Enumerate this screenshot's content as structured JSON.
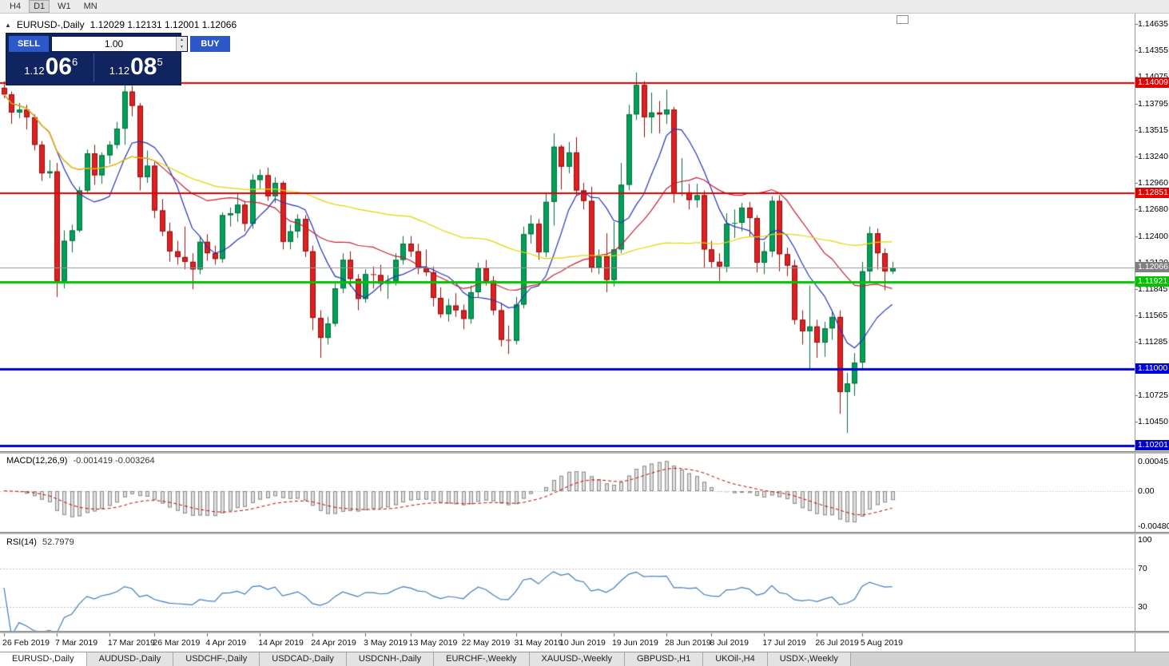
{
  "toolbar": {
    "timeframes": [
      {
        "label": "H4",
        "active": false
      },
      {
        "label": "D1",
        "active": true
      },
      {
        "label": "W1",
        "active": false
      },
      {
        "label": "MN",
        "active": false
      }
    ]
  },
  "chart": {
    "title": "EURUSD-,Daily",
    "ohlc_text": "1.12029 1.12131 1.12001 1.12066"
  },
  "trade_panel": {
    "sell_label": "SELL",
    "buy_label": "BUY",
    "volume": "1.00",
    "sell_price_main": "1.12",
    "sell_price_big": "06",
    "sell_price_sup": "6",
    "buy_price_main": "1.12",
    "buy_price_big": "08",
    "buy_price_sup": "5"
  },
  "indicators": {
    "macd": {
      "label": "MACD(12,26,9)",
      "values": "-0.001419 -0.003264",
      "axis": [
        "0.0004517",
        "0.00",
        "-0.0048060"
      ]
    },
    "rsi": {
      "label": "RSI(14)",
      "value": "52.7979",
      "axis": [
        {
          "text": "100",
          "value": 100
        },
        {
          "text": "70",
          "value": 70
        },
        {
          "text": "30",
          "value": 30
        }
      ]
    }
  },
  "price_axis": {
    "ticks": [
      {
        "text": "1.14635",
        "value": 1.14635
      },
      {
        "text": "1.14355",
        "value": 1.14355
      },
      {
        "text": "1.14075",
        "value": 1.14075
      },
      {
        "text": "1.13795",
        "value": 1.13795
      },
      {
        "text": "1.13515",
        "value": 1.13515
      },
      {
        "text": "1.13240",
        "value": 1.1324
      },
      {
        "text": "1.12960",
        "value": 1.1296
      },
      {
        "text": "1.12680",
        "value": 1.1268
      },
      {
        "text": "1.12400",
        "value": 1.124
      },
      {
        "text": "1.12120",
        "value": 1.1212
      },
      {
        "text": "1.11845",
        "value": 1.11845
      },
      {
        "text": "1.11565",
        "value": 1.11565
      },
      {
        "text": "1.11285",
        "value": 1.11285
      },
      {
        "text": "1.11005",
        "value": 1.11005
      },
      {
        "text": "1.10725",
        "value": 1.10725
      },
      {
        "text": "1.10450",
        "value": 1.1045
      }
    ],
    "marked": [
      {
        "text": "1.14009",
        "value": 1.14009,
        "bg": "#e00000",
        "fg": "#ffffff"
      },
      {
        "text": "1.12851",
        "value": 1.12851,
        "bg": "#e00000",
        "fg": "#ffffff"
      },
      {
        "text": "1.12066",
        "value": 1.12066,
        "bg": "#7f7f7f",
        "fg": "#ffffff"
      },
      {
        "text": "1.11921",
        "value": 1.11921,
        "bg": "#00c400",
        "fg": "#ffffff"
      },
      {
        "text": "1.11000",
        "value": 1.11,
        "bg": "#0000dd",
        "fg": "#ffffff"
      },
      {
        "text": "1.10201",
        "value": 1.10201,
        "bg": "#0000cc",
        "fg": "#ffffff"
      }
    ]
  },
  "time_axis": {
    "labels": [
      {
        "text": "26 Feb 2019",
        "bar": 0
      },
      {
        "text": "7 Mar 2019",
        "bar": 7
      },
      {
        "text": "17 Mar 2019",
        "bar": 14
      },
      {
        "text": "26 Mar 2019",
        "bar": 20
      },
      {
        "text": "4 Apr 2019",
        "bar": 27
      },
      {
        "text": "14 Apr 2019",
        "bar": 34
      },
      {
        "text": "24 Apr 2019",
        "bar": 41
      },
      {
        "text": "3 May 2019",
        "bar": 48
      },
      {
        "text": "13 May 2019",
        "bar": 54
      },
      {
        "text": "22 May 2019",
        "bar": 61
      },
      {
        "text": "31 May 2019",
        "bar": 68
      },
      {
        "text": "10 Jun 2019",
        "bar": 74
      },
      {
        "text": "19 Jun 2019",
        "bar": 81
      },
      {
        "text": "28 Jun 2019",
        "bar": 88
      },
      {
        "text": "8 Jul 2019",
        "bar": 94
      },
      {
        "text": "17 Jul 2019",
        "bar": 101
      },
      {
        "text": "26 Jul 2019",
        "bar": 108
      },
      {
        "text": "5 Aug 2019",
        "bar": 114
      }
    ]
  },
  "tabs": [
    {
      "label": "EURUSD-,Daily",
      "active": true
    },
    {
      "label": "AUDUSD-,Daily",
      "active": false
    },
    {
      "label": "USDCHF-,Daily",
      "active": false
    },
    {
      "label": "USDCAD-,Daily",
      "active": false
    },
    {
      "label": "USDCNH-,Daily",
      "active": false
    },
    {
      "label": "EURCHF-,Weekly",
      "active": false
    },
    {
      "label": "XAUUSD-,Weekly",
      "active": false
    },
    {
      "label": "GBPUSD-,H1",
      "active": false
    },
    {
      "label": "UKOil-,H4",
      "active": false
    },
    {
      "label": "USDX-,Weekly",
      "active": false
    }
  ],
  "chart_data": {
    "type": "candlestick",
    "symbol": "EURUSD-",
    "timeframe": "Daily",
    "current_price": 1.12066,
    "price_range": [
      1.1013,
      1.1474
    ],
    "hlines": [
      {
        "price": 1.14009,
        "color": "#e00000",
        "width": 2
      },
      {
        "price": 1.12851,
        "color": "#e00000",
        "width": 2
      },
      {
        "price": 1.11921,
        "color": "#00c400",
        "width": 3
      },
      {
        "price": 1.11,
        "color": "#0000dd",
        "width": 3
      },
      {
        "price": 1.10201,
        "color": "#0000cc",
        "width": 3
      }
    ],
    "overlays": [
      {
        "type": "sma",
        "period": 8,
        "color": "#2233bb"
      },
      {
        "type": "sma",
        "period": 21,
        "color": "#c22033"
      },
      {
        "type": "sma",
        "period": 55,
        "color": "#e6d400"
      }
    ],
    "macd": {
      "fast": 12,
      "slow": 26,
      "signal": 9,
      "histogram_color": "#dedede",
      "signal_color": "#cc0000",
      "range": [
        -0.0056,
        0.005
      ]
    },
    "rsi": {
      "period": 14,
      "color": "#3f7cbf",
      "levels": [
        70,
        30
      ],
      "range": [
        0,
        100
      ]
    },
    "candles": [
      [
        1.1396,
        1.1403,
        1.1385,
        1.1389
      ],
      [
        1.1389,
        1.1392,
        1.1358,
        1.137
      ],
      [
        1.137,
        1.138,
        1.1364,
        1.1373
      ],
      [
        1.1373,
        1.1378,
        1.1352,
        1.1365
      ],
      [
        1.1365,
        1.1368,
        1.133,
        1.1336
      ],
      [
        1.1336,
        1.134,
        1.1298,
        1.1306
      ],
      [
        1.1306,
        1.132,
        1.1301,
        1.1308
      ],
      [
        1.1308,
        1.1317,
        1.1176,
        1.1193
      ],
      [
        1.1193,
        1.1246,
        1.1185,
        1.1235
      ],
      [
        1.1235,
        1.1252,
        1.1223,
        1.1246
      ],
      [
        1.1246,
        1.1292,
        1.1244,
        1.1288
      ],
      [
        1.1288,
        1.1331,
        1.1285,
        1.1327
      ],
      [
        1.1327,
        1.1336,
        1.1294,
        1.1304
      ],
      [
        1.1304,
        1.1328,
        1.1295,
        1.1325
      ],
      [
        1.1325,
        1.134,
        1.1316,
        1.1336
      ],
      [
        1.1336,
        1.136,
        1.1332,
        1.1353
      ],
      [
        1.1353,
        1.1408,
        1.1336,
        1.1392
      ],
      [
        1.1392,
        1.1398,
        1.1366,
        1.1377
      ],
      [
        1.1377,
        1.138,
        1.1288,
        1.1302
      ],
      [
        1.1302,
        1.133,
        1.1296,
        1.1314
      ],
      [
        1.1314,
        1.1318,
        1.1259,
        1.1267
      ],
      [
        1.1267,
        1.1279,
        1.124,
        1.1245
      ],
      [
        1.1245,
        1.1254,
        1.1213,
        1.1224
      ],
      [
        1.1224,
        1.1235,
        1.121,
        1.1218
      ],
      [
        1.1218,
        1.125,
        1.1205,
        1.1213
      ],
      [
        1.1213,
        1.1222,
        1.1184,
        1.1205
      ],
      [
        1.1205,
        1.124,
        1.12,
        1.1234
      ],
      [
        1.1234,
        1.1242,
        1.1214,
        1.1222
      ],
      [
        1.1222,
        1.123,
        1.121,
        1.1216
      ],
      [
        1.1216,
        1.1265,
        1.1212,
        1.1262
      ],
      [
        1.1262,
        1.127,
        1.125,
        1.1264
      ],
      [
        1.1264,
        1.1285,
        1.1255,
        1.1273
      ],
      [
        1.1273,
        1.1277,
        1.1245,
        1.1253
      ],
      [
        1.1253,
        1.1305,
        1.1248,
        1.1299
      ],
      [
        1.1299,
        1.131,
        1.129,
        1.1304
      ],
      [
        1.1304,
        1.1312,
        1.1277,
        1.1282
      ],
      [
        1.1282,
        1.1302,
        1.1275,
        1.1296
      ],
      [
        1.1296,
        1.1298,
        1.1226,
        1.1234
      ],
      [
        1.1234,
        1.1252,
        1.1226,
        1.1245
      ],
      [
        1.1245,
        1.1263,
        1.1238,
        1.1258
      ],
      [
        1.1258,
        1.1262,
        1.1218,
        1.1224
      ],
      [
        1.1224,
        1.123,
        1.1141,
        1.1154
      ],
      [
        1.1154,
        1.1162,
        1.1112,
        1.1133
      ],
      [
        1.1133,
        1.1155,
        1.1126,
        1.1148
      ],
      [
        1.1148,
        1.119,
        1.1145,
        1.1185
      ],
      [
        1.1185,
        1.1222,
        1.118,
        1.1215
      ],
      [
        1.1215,
        1.1224,
        1.1187,
        1.1195
      ],
      [
        1.1195,
        1.12,
        1.1162,
        1.1174
      ],
      [
        1.1174,
        1.1205,
        1.117,
        1.12
      ],
      [
        1.12,
        1.1208,
        1.1185,
        1.1199
      ],
      [
        1.1199,
        1.121,
        1.1182,
        1.119
      ],
      [
        1.119,
        1.1199,
        1.1174,
        1.1193
      ],
      [
        1.1193,
        1.1222,
        1.1188,
        1.1215
      ],
      [
        1.1215,
        1.124,
        1.121,
        1.1232
      ],
      [
        1.1232,
        1.124,
        1.1218,
        1.1224
      ],
      [
        1.1224,
        1.1232,
        1.12,
        1.1206
      ],
      [
        1.1206,
        1.1226,
        1.1198,
        1.1202
      ],
      [
        1.1202,
        1.1208,
        1.1166,
        1.1175
      ],
      [
        1.1175,
        1.1186,
        1.1154,
        1.1158
      ],
      [
        1.1158,
        1.1174,
        1.115,
        1.1167
      ],
      [
        1.1167,
        1.118,
        1.1155,
        1.1162
      ],
      [
        1.1162,
        1.1168,
        1.1142,
        1.1153
      ],
      [
        1.1153,
        1.1188,
        1.1148,
        1.1181
      ],
      [
        1.1181,
        1.1212,
        1.1176,
        1.1206
      ],
      [
        1.1206,
        1.1215,
        1.1188,
        1.1193
      ],
      [
        1.1193,
        1.1198,
        1.1157,
        1.1162
      ],
      [
        1.1162,
        1.117,
        1.1124,
        1.1131
      ],
      [
        1.1131,
        1.1146,
        1.1116,
        1.113
      ],
      [
        1.113,
        1.1176,
        1.1126,
        1.1168
      ],
      [
        1.1168,
        1.125,
        1.1164,
        1.1242
      ],
      [
        1.1242,
        1.1262,
        1.1232,
        1.1253
      ],
      [
        1.1253,
        1.1258,
        1.1215,
        1.1223
      ],
      [
        1.1223,
        1.1286,
        1.1218,
        1.1276
      ],
      [
        1.1276,
        1.1348,
        1.1251,
        1.1334
      ],
      [
        1.1334,
        1.1336,
        1.1289,
        1.1313
      ],
      [
        1.1313,
        1.1339,
        1.1306,
        1.1328
      ],
      [
        1.1328,
        1.1344,
        1.1283,
        1.1288
      ],
      [
        1.1288,
        1.1296,
        1.1268,
        1.1277
      ],
      [
        1.1277,
        1.1292,
        1.1202,
        1.1207
      ],
      [
        1.1207,
        1.1226,
        1.12,
        1.1219
      ],
      [
        1.1219,
        1.1243,
        1.1181,
        1.1194
      ],
      [
        1.1194,
        1.1255,
        1.1187,
        1.1226
      ],
      [
        1.1226,
        1.1317,
        1.1222,
        1.1294
      ],
      [
        1.1294,
        1.1378,
        1.1288,
        1.1368
      ],
      [
        1.1368,
        1.1412,
        1.1362,
        1.1399
      ],
      [
        1.1399,
        1.1403,
        1.1344,
        1.1365
      ],
      [
        1.1365,
        1.1391,
        1.1348,
        1.137
      ],
      [
        1.137,
        1.1382,
        1.1348,
        1.1368
      ],
      [
        1.1368,
        1.1394,
        1.1358,
        1.1373
      ],
      [
        1.1373,
        1.1376,
        1.1275,
        1.1285
      ],
      [
        1.1285,
        1.1322,
        1.1282,
        1.1286
      ],
      [
        1.1286,
        1.1295,
        1.1268,
        1.1278
      ],
      [
        1.1278,
        1.1295,
        1.127,
        1.1283
      ],
      [
        1.1283,
        1.1288,
        1.1207,
        1.1226
      ],
      [
        1.1226,
        1.1235,
        1.1207,
        1.1213
      ],
      [
        1.1213,
        1.1222,
        1.1193,
        1.1208
      ],
      [
        1.1208,
        1.1264,
        1.1202,
        1.1253
      ],
      [
        1.1253,
        1.1268,
        1.1238,
        1.1254
      ],
      [
        1.1254,
        1.1275,
        1.1245,
        1.127
      ],
      [
        1.127,
        1.1276,
        1.1239,
        1.1259
      ],
      [
        1.1259,
        1.1262,
        1.1202,
        1.1212
      ],
      [
        1.1212,
        1.1234,
        1.12,
        1.1224
      ],
      [
        1.1224,
        1.1282,
        1.1218,
        1.1277
      ],
      [
        1.1277,
        1.1283,
        1.1203,
        1.1221
      ],
      [
        1.1221,
        1.1228,
        1.1198,
        1.1209
      ],
      [
        1.1209,
        1.1215,
        1.1147,
        1.1152
      ],
      [
        1.1152,
        1.1162,
        1.1126,
        1.114
      ],
      [
        1.114,
        1.1188,
        1.1101,
        1.1145
      ],
      [
        1.1145,
        1.1152,
        1.1112,
        1.1128
      ],
      [
        1.1128,
        1.115,
        1.1113,
        1.1143
      ],
      [
        1.1143,
        1.1162,
        1.1131,
        1.1155
      ],
      [
        1.1155,
        1.1162,
        1.1053,
        1.1076
      ],
      [
        1.1076,
        1.1096,
        1.1033,
        1.1085
      ],
      [
        1.1085,
        1.1117,
        1.1072,
        1.1107
      ],
      [
        1.1107,
        1.1213,
        1.1101,
        1.1203
      ],
      [
        1.1203,
        1.125,
        1.1192,
        1.1243
      ],
      [
        1.1243,
        1.1248,
        1.1205,
        1.1222
      ],
      [
        1.1222,
        1.1227,
        1.1183,
        1.1203
      ],
      [
        1.12029,
        1.12131,
        1.12001,
        1.12066
      ]
    ]
  }
}
